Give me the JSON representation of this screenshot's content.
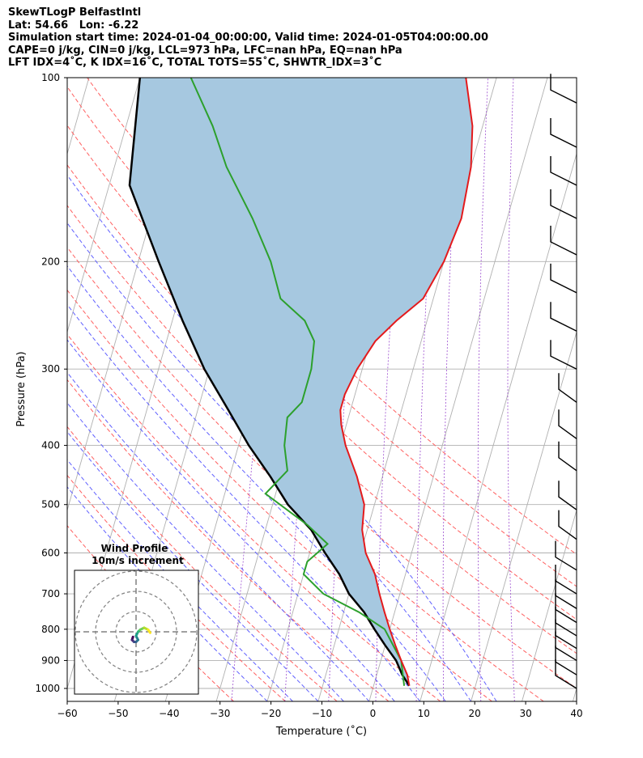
{
  "header": {
    "line1": "SkewTLogP BelfastIntl",
    "line2": "Lat: 54.66   Lon: -6.22",
    "line3": "Simulation start time: 2024-01-04_00:00:00, Valid time: 2024-01-05T04:00:00.00",
    "line4": "CAPE=0 j/kg, CIN=0 j/kg, LCL=973 hPa, LFC=nan hPa, EQ=nan hPa",
    "line5": "LFT IDX=4˚C, K IDX=16˚C, TOTAL TOTS=55˚C, SHWTR_IDX=3˚C"
  },
  "chart_data": {
    "type": "skewt-logp",
    "xlabel": "Temperature (˚C)",
    "ylabel": "Pressure (hPa)",
    "xlim": [
      -60,
      40
    ],
    "ylim": [
      1050,
      100
    ],
    "x_ticks": [
      "−60",
      "−50",
      "−40",
      "−30",
      "−20",
      "−10",
      "0",
      "10",
      "20",
      "30",
      "40"
    ],
    "y_ticks": [
      "100",
      "200",
      "300",
      "400",
      "500",
      "600",
      "700",
      "800",
      "900",
      "1000"
    ],
    "grid": true,
    "temperature": {
      "color": "#e41a1c",
      "points": [
        [
          7,
          990
        ],
        [
          6,
          950
        ],
        [
          4,
          900
        ],
        [
          2,
          850
        ],
        [
          0,
          800
        ],
        [
          -2,
          750
        ],
        [
          -4,
          700
        ],
        [
          -6,
          650
        ],
        [
          -9,
          600
        ],
        [
          -11,
          550
        ],
        [
          -12,
          500
        ],
        [
          -15,
          450
        ],
        [
          -19,
          400
        ],
        [
          -21,
          370
        ],
        [
          -22,
          350
        ],
        [
          -22,
          330
        ],
        [
          -21,
          300
        ],
        [
          -19,
          270
        ],
        [
          -16,
          250
        ],
        [
          -12,
          230
        ],
        [
          -10,
          200
        ],
        [
          -9,
          170
        ],
        [
          -10,
          140
        ],
        [
          -12,
          120
        ],
        [
          -16,
          100
        ]
      ]
    },
    "dewpoint": {
      "color": "#2ca02c",
      "points": [
        [
          6,
          990
        ],
        [
          4,
          900
        ],
        [
          -1,
          800
        ],
        [
          -7,
          750
        ],
        [
          -15,
          700
        ],
        [
          -20,
          650
        ],
        [
          -20,
          620
        ],
        [
          -17,
          580
        ],
        [
          -22,
          540
        ],
        [
          -32,
          480
        ],
        [
          -29,
          440
        ],
        [
          -31,
          400
        ],
        [
          -32,
          360
        ],
        [
          -30,
          340
        ],
        [
          -30,
          300
        ],
        [
          -31,
          270
        ],
        [
          -34,
          250
        ],
        [
          -40,
          230
        ],
        [
          -44,
          200
        ],
        [
          -50,
          170
        ],
        [
          -58,
          140
        ],
        [
          -63,
          120
        ],
        [
          -70,
          100
        ]
      ]
    },
    "parcel_profile": {
      "color": "#000000",
      "points": [
        [
          7,
          990
        ],
        [
          5,
          950
        ],
        [
          3,
          900
        ],
        [
          0,
          850
        ],
        [
          -3,
          800
        ],
        [
          -6,
          750
        ],
        [
          -10,
          700
        ],
        [
          -13,
          650
        ],
        [
          -17,
          600
        ],
        [
          -21,
          550
        ],
        [
          -27,
          500
        ],
        [
          -32,
          450
        ],
        [
          -38,
          400
        ],
        [
          -44,
          350
        ],
        [
          -51,
          300
        ],
        [
          -58,
          250
        ],
        [
          -66,
          200
        ],
        [
          -76,
          150
        ],
        [
          -80,
          100
        ]
      ]
    },
    "shading": "CIN (blue) between parcel and environment",
    "dry_adiabats_C": [
      -30,
      -20,
      -10,
      0,
      10,
      20,
      30,
      40,
      50,
      60,
      70,
      80
    ],
    "moist_adiabats_C": [
      -20,
      -15,
      -10,
      -5,
      0,
      5,
      10,
      15,
      20,
      25
    ],
    "mixing_ratio_lines_gkg": [
      0.4,
      1,
      2,
      4,
      7,
      10,
      16,
      24
    ],
    "wind_barbs": {
      "color": "#000000",
      "levels_hPa": [
        110,
        130,
        150,
        170,
        195,
        225,
        260,
        300,
        340,
        390,
        440,
        510,
        570,
        640,
        700,
        740,
        780,
        820,
        860,
        900,
        950,
        1000
      ]
    },
    "hodograph": {
      "title": "Wind Profile",
      "subtitle": "10m/s increment",
      "rings_ms": [
        10,
        20,
        30
      ],
      "trace": [
        [
          -1.5,
          -2.5
        ],
        [
          -2,
          -4
        ],
        [
          -1,
          -5
        ],
        [
          0,
          -5
        ],
        [
          1,
          -4
        ],
        [
          0,
          -2
        ],
        [
          1,
          0
        ],
        [
          2,
          1
        ],
        [
          4,
          2
        ],
        [
          6,
          1
        ],
        [
          7,
          -0.5
        ]
      ]
    }
  }
}
